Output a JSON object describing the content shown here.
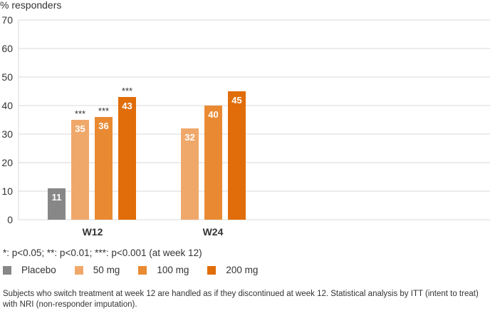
{
  "chart_data": {
    "type": "bar",
    "ylabel": "% responders",
    "ylim": [
      0,
      70
    ],
    "yticks": [
      0,
      10,
      20,
      30,
      40,
      50,
      60,
      70
    ],
    "grid": true,
    "categories": [
      "W12",
      "W24"
    ],
    "series": [
      {
        "name": "Placebo",
        "color": "#878787",
        "values": [
          11,
          null
        ]
      },
      {
        "name": "50 mg",
        "color": "#f0a86a",
        "values": [
          35,
          32
        ]
      },
      {
        "name": "100 mg",
        "color": "#e98a33",
        "values": [
          36,
          40
        ]
      },
      {
        "name": "200 mg",
        "color": "#e06d0a",
        "values": [
          43,
          45
        ]
      }
    ],
    "annotations": [
      {
        "category": "W12",
        "series": "50 mg",
        "text": "***"
      },
      {
        "category": "W12",
        "series": "100 mg",
        "text": "***"
      },
      {
        "category": "W12",
        "series": "200 mg",
        "text": "***"
      }
    ]
  },
  "footnote": "*: p<0.05; **: p<0.01; ***: p<0.001 (at week 12)",
  "note": "Subjects who switch treatment at week 12 are handled as if they discontinued at week 12. Statistical analysis by ITT (intent to treat) with NRI (non-responder imputation)."
}
